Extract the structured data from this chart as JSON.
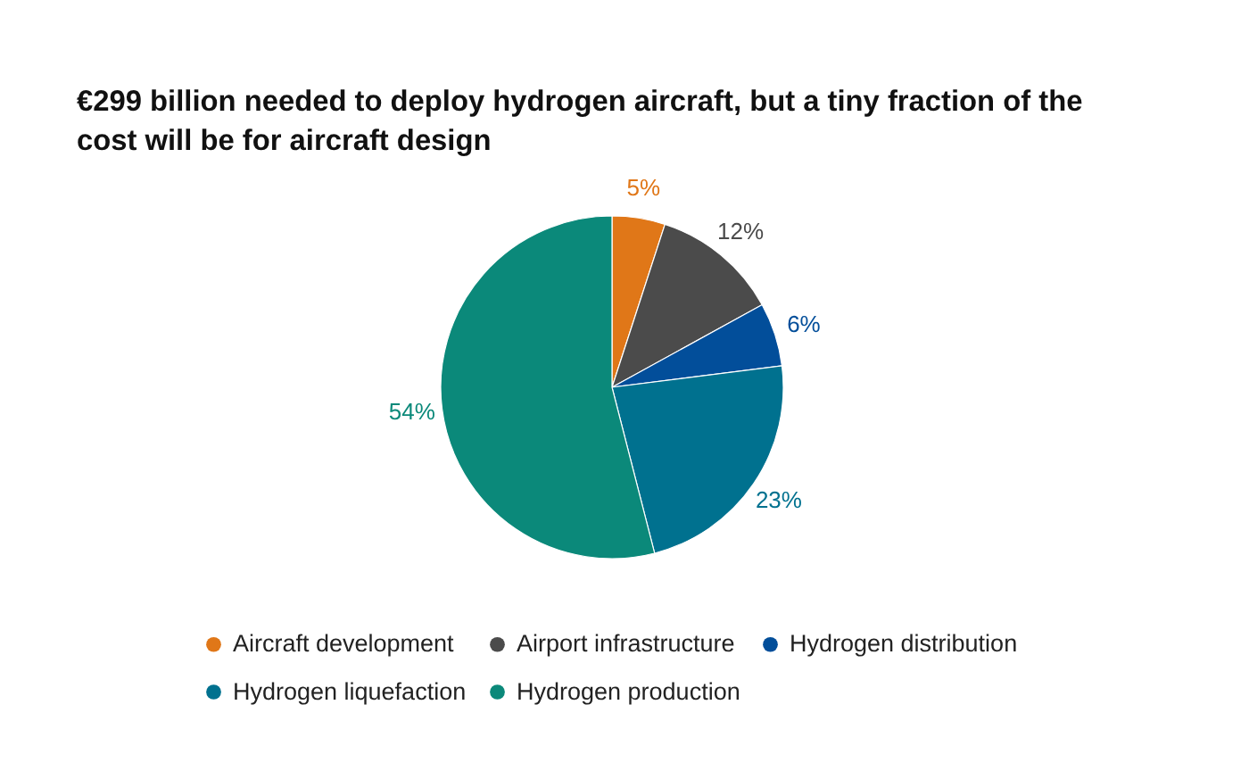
{
  "chart_data": {
    "type": "pie",
    "title": "€299 billion needed to deploy hydrogen aircraft, but a tiny fraction of the cost will be for aircraft design",
    "categories": [
      "Aircraft development",
      "Airport infrastructure",
      "Hydrogen distribution",
      "Hydrogen liquefaction",
      "Hydrogen production"
    ],
    "values": [
      5,
      12,
      6,
      23,
      54
    ],
    "colors": [
      "#e07718",
      "#4b4b4b",
      "#024e9a",
      "#00718f",
      "#0b897a"
    ],
    "value_labels": [
      "5%",
      "12%",
      "6%",
      "23%",
      "54%"
    ],
    "legend": "bottom"
  }
}
